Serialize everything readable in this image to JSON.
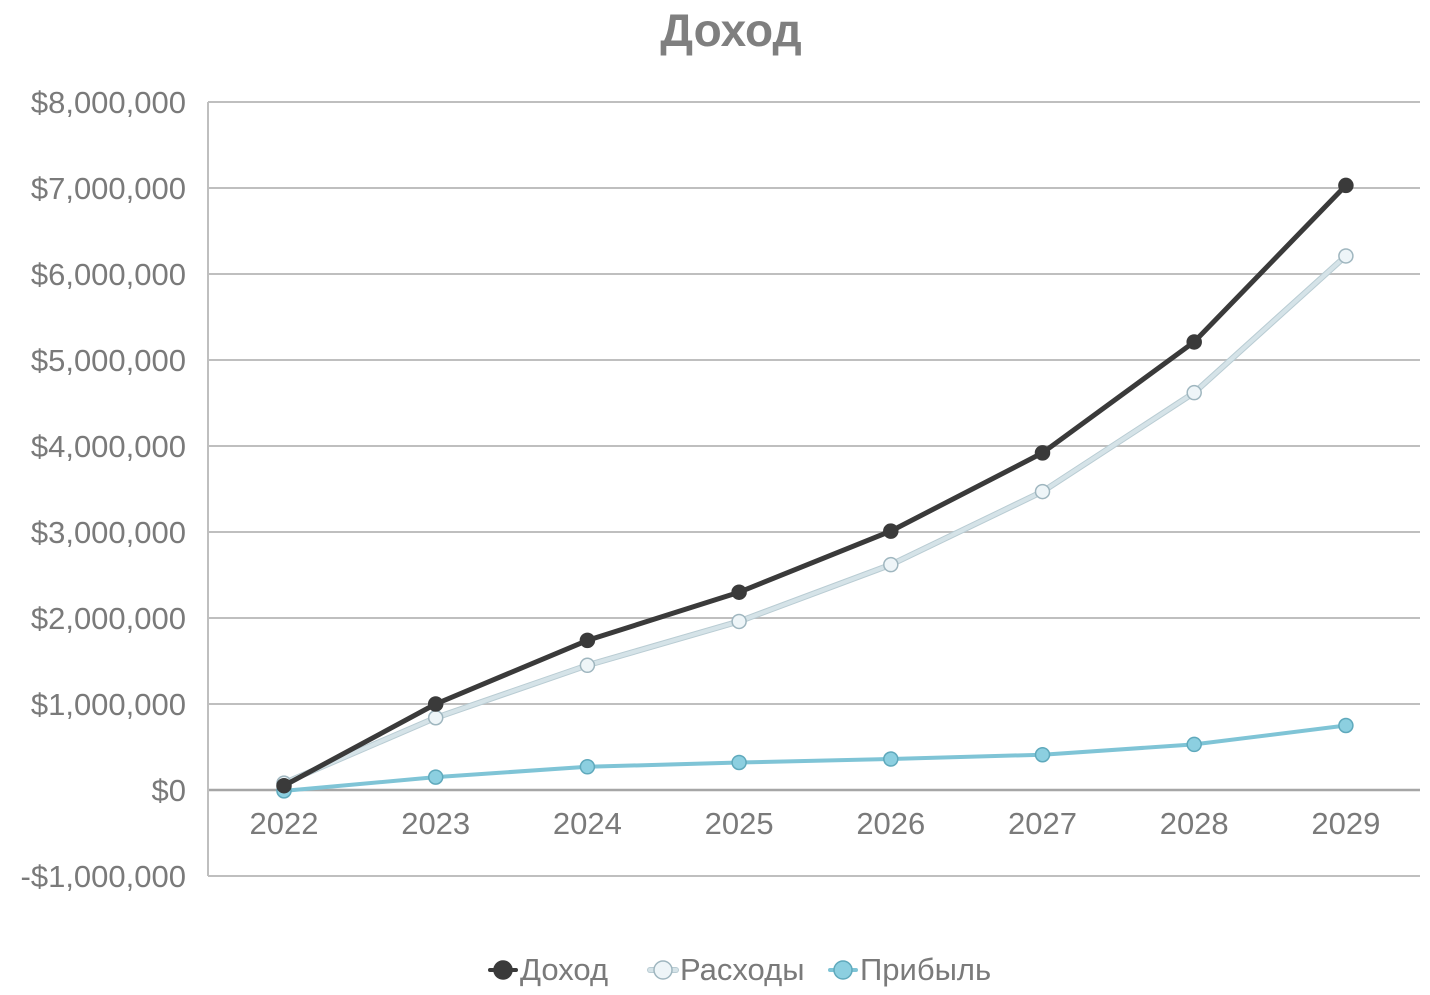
{
  "chart_data": {
    "type": "line",
    "title": "Доход",
    "xlabel": "",
    "ylabel": "",
    "categories": [
      "2022",
      "2023",
      "2024",
      "2025",
      "2026",
      "2027",
      "2028",
      "2029"
    ],
    "ylim": [
      -1000000,
      8000000
    ],
    "yticks": [
      8000000,
      7000000,
      6000000,
      5000000,
      4000000,
      3000000,
      2000000,
      1000000,
      0,
      -1000000
    ],
    "ytick_labels": [
      "$8,000,000",
      "$7,000,000",
      "$6,000,000",
      "$5,000,000",
      "$4,000,000",
      "$3,000,000",
      "$2,000,000",
      "$1,000,000",
      "$0",
      "-$1,000,000"
    ],
    "grid": true,
    "legend_position": "bottom",
    "series": [
      {
        "name": "Доход",
        "values": [
          50000,
          1000000,
          1740000,
          2300000,
          3010000,
          3920000,
          5210000,
          7030000
        ],
        "color": "#3a3a3a",
        "marker_fill": "#3a3a3a",
        "marker_stroke": "#3a3a3a"
      },
      {
        "name": "Расходы",
        "values": [
          80000,
          840000,
          1450000,
          1960000,
          2620000,
          3470000,
          4620000,
          6210000
        ],
        "color": "#d5e3e8",
        "marker_fill": "#eef5f8",
        "marker_stroke": "#9fb6bf"
      },
      {
        "name": "Прибыль",
        "values": [
          -10000,
          150000,
          270000,
          320000,
          360000,
          410000,
          530000,
          750000
        ],
        "color": "#7fc4d6",
        "marker_fill": "#8ccfe0",
        "marker_stroke": "#5fa9bc"
      }
    ]
  }
}
